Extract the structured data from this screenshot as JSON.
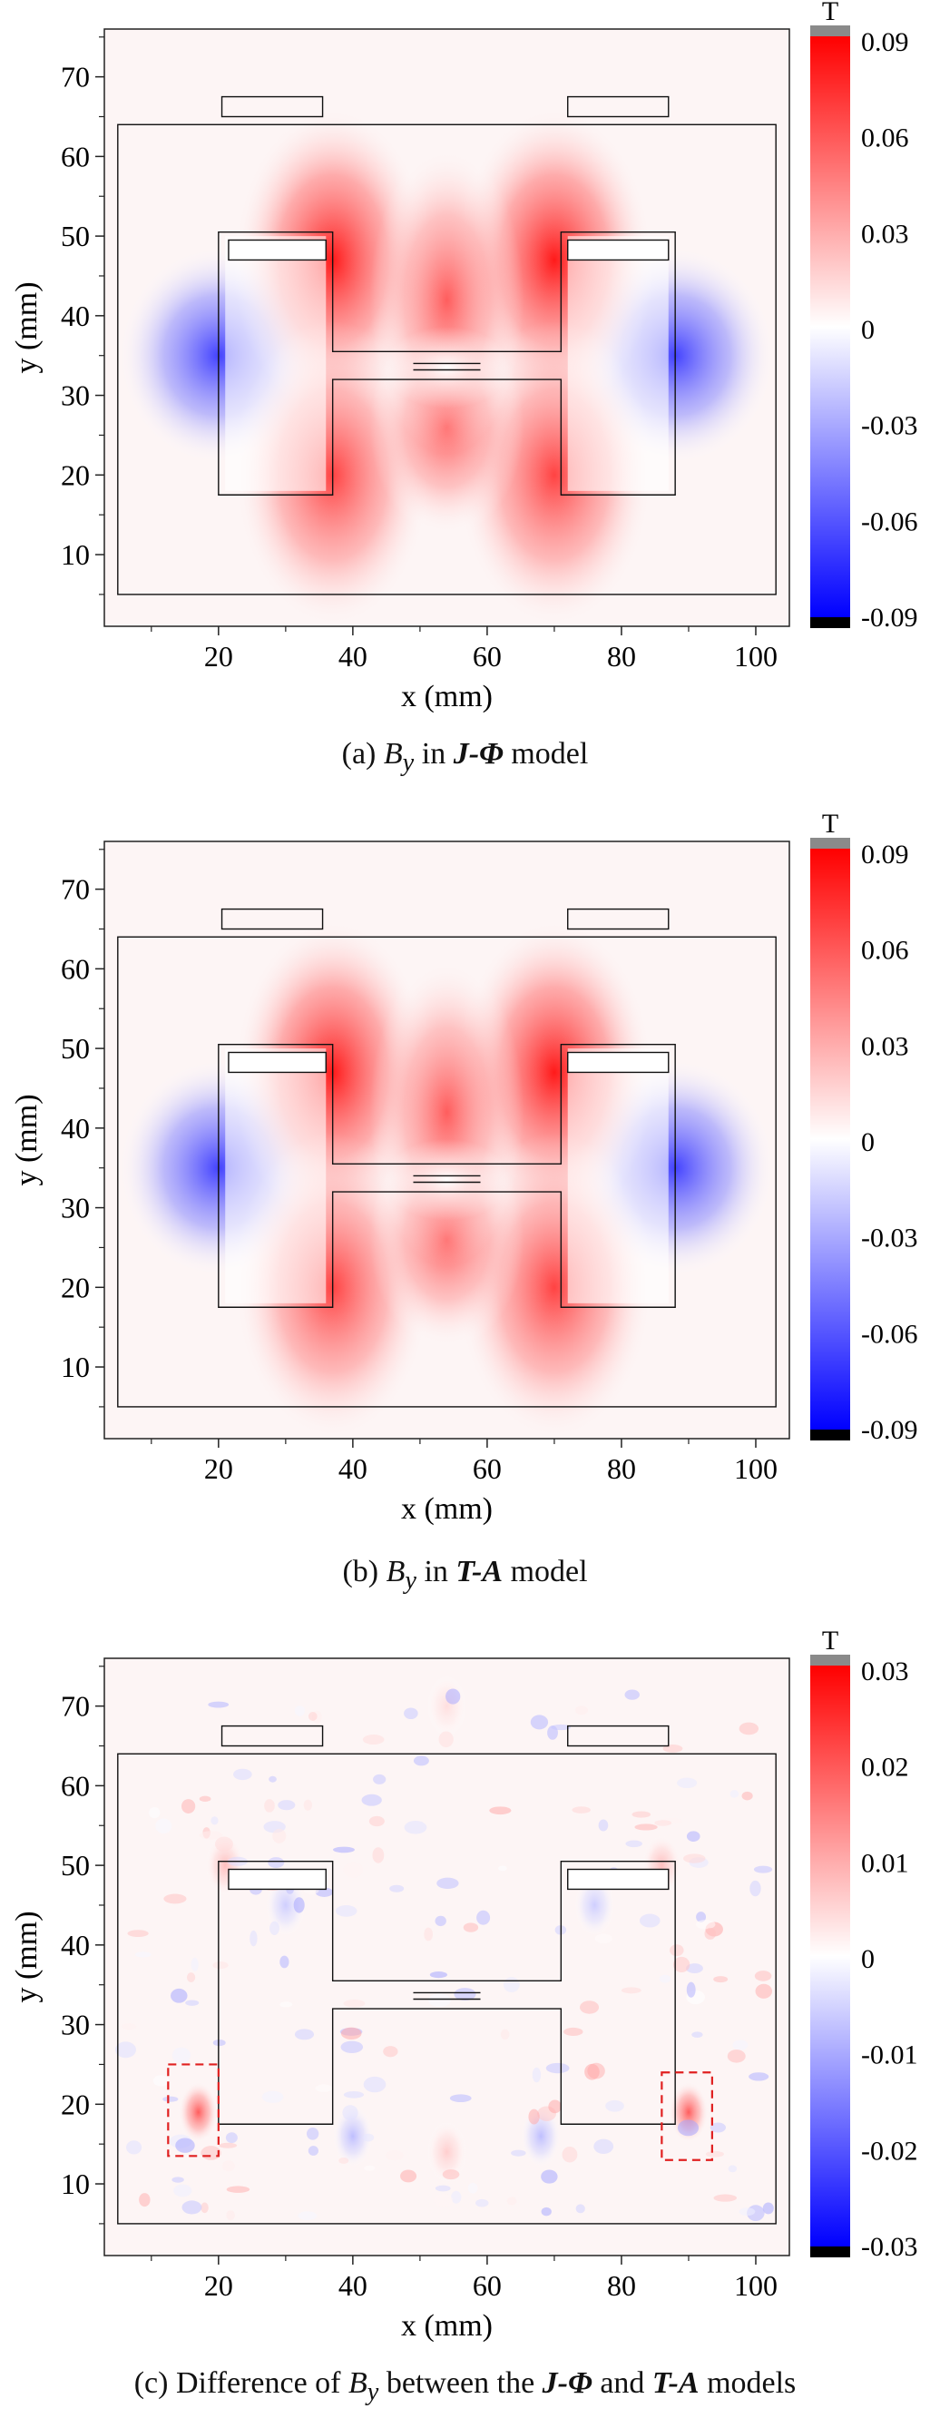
{
  "panels": [
    {
      "caption": {
        "prefix": "(a) ",
        "var": "B",
        "sub": "y",
        "mid": " in ",
        "model": "J-Φ",
        "suffix": " model"
      },
      "chart_data": {
        "type": "heatmap",
        "xlabel": "x (mm)",
        "ylabel": "y (mm)",
        "xlim": [
          3,
          105
        ],
        "ylim": [
          1,
          76
        ],
        "xticks": [
          "20",
          "40",
          "60",
          "80",
          "100"
        ],
        "yticks": [
          "10",
          "20",
          "30",
          "40",
          "50",
          "60",
          "70"
        ],
        "colorbar": {
          "unit": "T",
          "range": [
            -0.09,
            0.09
          ],
          "ticks": [
            "0.09",
            "0.06",
            "0.03",
            "0",
            "-0.03",
            "-0.06",
            "-0.09"
          ]
        },
        "field_blobs": [
          {
            "x": 20,
            "y": 35,
            "value": -0.07
          },
          {
            "x": 88,
            "y": 35,
            "value": -0.07
          },
          {
            "x": 37,
            "y": 47,
            "value": 0.085
          },
          {
            "x": 70,
            "y": 47,
            "value": 0.085
          },
          {
            "x": 37,
            "y": 20,
            "value": 0.07
          },
          {
            "x": 70,
            "y": 20,
            "value": 0.07
          },
          {
            "x": 54,
            "y": 26,
            "value": 0.06
          },
          {
            "x": 54,
            "y": 42,
            "value": 0.06
          }
        ]
      }
    },
    {
      "caption": {
        "prefix": "(b) ",
        "var": "B",
        "sub": "y",
        "mid": " in ",
        "model": "T-A",
        "suffix": " model"
      },
      "chart_data": {
        "type": "heatmap",
        "xlabel": "x (mm)",
        "ylabel": "y (mm)",
        "xlim": [
          3,
          105
        ],
        "ylim": [
          1,
          76
        ],
        "xticks": [
          "20",
          "40",
          "60",
          "80",
          "100"
        ],
        "yticks": [
          "10",
          "20",
          "30",
          "40",
          "50",
          "60",
          "70"
        ],
        "colorbar": {
          "unit": "T",
          "range": [
            -0.09,
            0.09
          ],
          "ticks": [
            "0.09",
            "0.06",
            "0.03",
            "0",
            "-0.03",
            "-0.06",
            "-0.09"
          ]
        },
        "field_blobs": [
          {
            "x": 20,
            "y": 35,
            "value": -0.07
          },
          {
            "x": 88,
            "y": 35,
            "value": -0.07
          },
          {
            "x": 37,
            "y": 47,
            "value": 0.085
          },
          {
            "x": 70,
            "y": 47,
            "value": 0.085
          },
          {
            "x": 37,
            "y": 20,
            "value": 0.07
          },
          {
            "x": 70,
            "y": 20,
            "value": 0.07
          },
          {
            "x": 54,
            "y": 26,
            "value": 0.06
          },
          {
            "x": 54,
            "y": 42,
            "value": 0.06
          }
        ]
      }
    },
    {
      "caption": {
        "prefix": "(c) Difference of ",
        "var": "B",
        "sub": "y",
        "mid": " between the ",
        "model": "J-Φ",
        "and": " and ",
        "model2": "T-A",
        "suffix": " models"
      },
      "chart_data": {
        "type": "heatmap",
        "xlabel": "x (mm)",
        "ylabel": "y (mm)",
        "xlim": [
          3,
          105
        ],
        "ylim": [
          1,
          76
        ],
        "xticks": [
          "20",
          "40",
          "60",
          "80",
          "100"
        ],
        "yticks": [
          "10",
          "20",
          "30",
          "40",
          "50",
          "60",
          "70"
        ],
        "colorbar": {
          "unit": "T",
          "range": [
            -0.03,
            0.03
          ],
          "ticks": [
            "0.03",
            "0.02",
            "0.01",
            "0",
            "-0.01",
            "-0.02",
            "-0.03"
          ]
        },
        "field_blobs": [
          {
            "x": 17,
            "y": 19,
            "value": 0.02
          },
          {
            "x": 90,
            "y": 19,
            "value": 0.02
          },
          {
            "x": 21,
            "y": 50,
            "value": 0.008
          },
          {
            "x": 86,
            "y": 50,
            "value": 0.008
          },
          {
            "x": 54,
            "y": 70,
            "value": 0.004
          },
          {
            "x": 30,
            "y": 45,
            "value": -0.006
          },
          {
            "x": 76,
            "y": 45,
            "value": -0.006
          },
          {
            "x": 40,
            "y": 16,
            "value": -0.008
          },
          {
            "x": 68,
            "y": 16,
            "value": -0.008
          },
          {
            "x": 54,
            "y": 14,
            "value": 0.006
          }
        ],
        "highlight_boxes": [
          {
            "x0": 12.5,
            "x1": 20,
            "y0": 13.5,
            "y1": 25
          },
          {
            "x0": 86,
            "x1": 93.5,
            "y0": 13,
            "y1": 24
          }
        ]
      }
    }
  ]
}
